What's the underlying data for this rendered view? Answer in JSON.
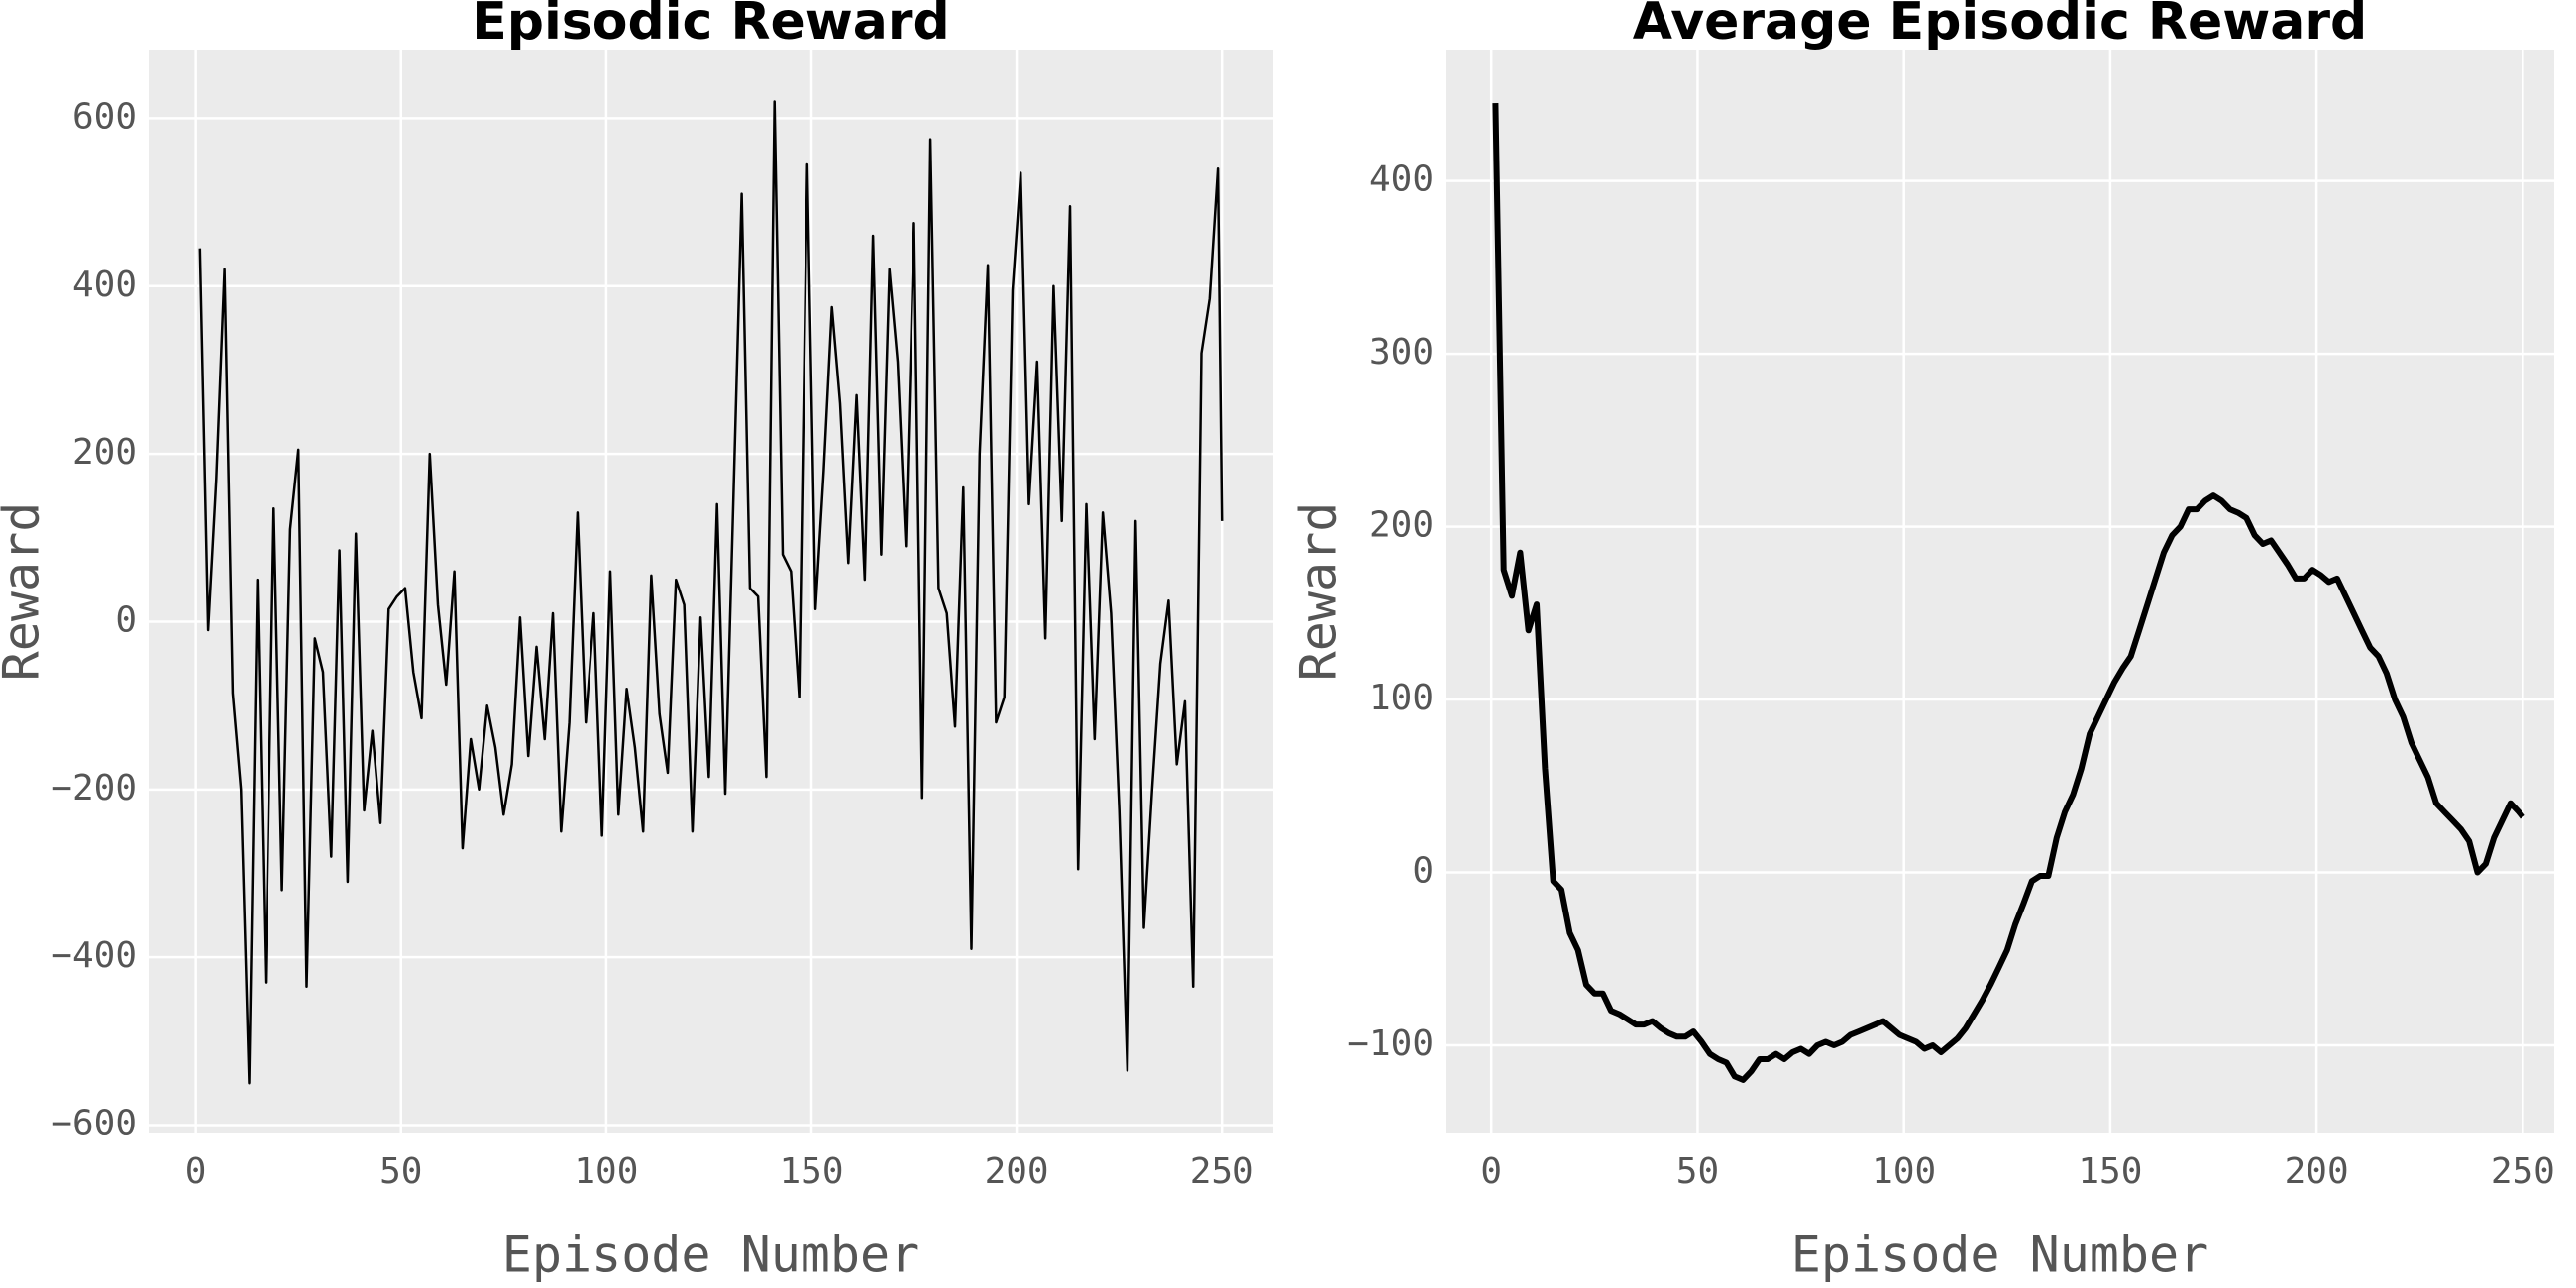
{
  "chart_data": [
    {
      "type": "line",
      "title": "Episodic Reward",
      "xlabel": "Episode Number",
      "ylabel": "Reward",
      "color": "#000000",
      "line_width": 2.5,
      "grid": true,
      "xlim": [
        -11.5,
        262.5
      ],
      "ylim": [
        -610,
        682
      ],
      "xticks": [
        0,
        50,
        100,
        150,
        200,
        250
      ],
      "yticks": [
        {
          "value": -600,
          "label": "−600"
        },
        {
          "value": -400,
          "label": "−400"
        },
        {
          "value": -200,
          "label": "−200"
        },
        0,
        200,
        400,
        600
      ],
      "x": [
        1,
        3,
        5,
        7,
        9,
        11,
        13,
        15,
        17,
        19,
        21,
        23,
        25,
        27,
        29,
        31,
        33,
        35,
        37,
        39,
        41,
        43,
        45,
        47,
        49,
        51,
        53,
        55,
        57,
        59,
        61,
        63,
        65,
        67,
        69,
        71,
        73,
        75,
        77,
        79,
        81,
        83,
        85,
        87,
        89,
        91,
        93,
        95,
        97,
        99,
        101,
        103,
        105,
        107,
        109,
        111,
        113,
        115,
        117,
        119,
        121,
        123,
        125,
        127,
        129,
        131,
        133,
        135,
        137,
        139,
        141,
        143,
        145,
        147,
        149,
        151,
        153,
        155,
        157,
        159,
        161,
        163,
        165,
        167,
        169,
        171,
        173,
        175,
        177,
        179,
        181,
        183,
        185,
        187,
        189,
        191,
        193,
        195,
        197,
        199,
        201,
        203,
        205,
        207,
        209,
        211,
        213,
        215,
        217,
        219,
        221,
        223,
        225,
        227,
        229,
        231,
        233,
        235,
        237,
        239,
        241,
        243,
        245,
        247,
        249,
        250
      ],
      "values": [
        445,
        -10,
        170,
        420,
        -85,
        -200,
        -550,
        50,
        -430,
        135,
        -320,
        110,
        205,
        -435,
        -20,
        -60,
        -280,
        85,
        -310,
        105,
        -225,
        -130,
        -240,
        15,
        30,
        40,
        -60,
        -115,
        200,
        20,
        -75,
        60,
        -270,
        -140,
        -200,
        -100,
        -150,
        -230,
        -170,
        5,
        -160,
        -30,
        -140,
        10,
        -250,
        -120,
        130,
        -120,
        10,
        -255,
        60,
        -230,
        -80,
        -150,
        -250,
        55,
        -110,
        -180,
        50,
        20,
        -250,
        5,
        -185,
        140,
        -205,
        150,
        510,
        40,
        30,
        -185,
        620,
        80,
        60,
        -90,
        545,
        15,
        180,
        375,
        260,
        70,
        270,
        50,
        460,
        80,
        420,
        310,
        90,
        475,
        -210,
        575,
        40,
        10,
        -125,
        160,
        -390,
        200,
        425,
        -120,
        -90,
        395,
        535,
        140,
        310,
        -20,
        400,
        120,
        495,
        -295,
        140,
        -140,
        130,
        10,
        -225,
        -535,
        120,
        -365,
        -200,
        -50,
        25,
        -170,
        -95,
        -435,
        320,
        385,
        540,
        120
      ]
    },
    {
      "type": "line",
      "title": "Average Episodic Reward",
      "xlabel": "Episode Number",
      "ylabel": "Reward",
      "color": "#000000",
      "line_width": 6,
      "grid": true,
      "xlim": [
        -11.1,
        257.6
      ],
      "ylim": [
        -151,
        476
      ],
      "xticks": [
        0,
        50,
        100,
        150,
        200,
        250
      ],
      "yticks": [
        {
          "value": -100,
          "label": "−100"
        },
        0,
        100,
        200,
        300,
        400
      ],
      "x": [
        1,
        3,
        5,
        7,
        9,
        11,
        13,
        15,
        17,
        19,
        21,
        23,
        25,
        27,
        29,
        31,
        33,
        35,
        37,
        39,
        41,
        43,
        45,
        47,
        49,
        51,
        53,
        55,
        57,
        59,
        61,
        63,
        65,
        67,
        69,
        71,
        73,
        75,
        77,
        79,
        81,
        83,
        85,
        87,
        89,
        91,
        93,
        95,
        97,
        99,
        101,
        103,
        105,
        107,
        109,
        111,
        113,
        115,
        117,
        119,
        121,
        123,
        125,
        127,
        129,
        131,
        133,
        135,
        137,
        139,
        141,
        143,
        145,
        147,
        149,
        151,
        153,
        155,
        157,
        159,
        161,
        163,
        165,
        167,
        169,
        171,
        173,
        175,
        177,
        179,
        181,
        183,
        185,
        187,
        189,
        191,
        193,
        195,
        197,
        199,
        201,
        203,
        205,
        207,
        209,
        211,
        213,
        215,
        217,
        219,
        221,
        223,
        225,
        227,
        229,
        231,
        233,
        235,
        237,
        239,
        241,
        243,
        245,
        247,
        249,
        250
      ],
      "values": [
        445,
        175,
        160,
        185,
        140,
        155,
        60,
        -5,
        -10,
        -35,
        -45,
        -65,
        -70,
        -70,
        -80,
        -82,
        -85,
        -88,
        -88,
        -86,
        -90,
        -93,
        -95,
        -95,
        -92,
        -98,
        -105,
        -108,
        -110,
        -118,
        -120,
        -115,
        -108,
        -108,
        -105,
        -108,
        -104,
        -102,
        -105,
        -100,
        -98,
        -100,
        -98,
        -94,
        -92,
        -90,
        -88,
        -86,
        -90,
        -94,
        -96,
        -98,
        -102,
        -100,
        -104,
        -100,
        -96,
        -90,
        -82,
        -74,
        -65,
        -55,
        -45,
        -30,
        -18,
        -5,
        -2,
        -2,
        20,
        35,
        45,
        60,
        80,
        90,
        100,
        110,
        118,
        125,
        140,
        155,
        170,
        185,
        195,
        200,
        210,
        210,
        215,
        218,
        215,
        210,
        208,
        205,
        195,
        190,
        192,
        185,
        178,
        170,
        170,
        175,
        172,
        168,
        170,
        160,
        150,
        140,
        130,
        125,
        115,
        100,
        90,
        75,
        65,
        55,
        40,
        35,
        30,
        25,
        18,
        0,
        5,
        20,
        30,
        40,
        35,
        32
      ]
    }
  ]
}
